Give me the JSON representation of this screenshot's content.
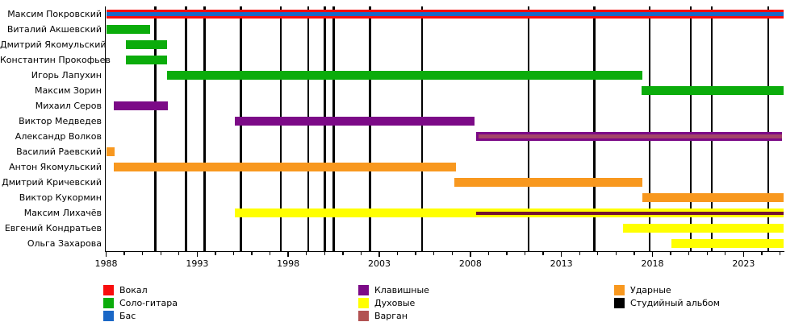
{
  "chart_data": {
    "type": "timeline",
    "title": "",
    "x_axis": {
      "min": 1988,
      "max": 2025.4,
      "major_ticks": [
        1988,
        1993,
        1998,
        2003,
        2008,
        2013,
        2018,
        2023
      ],
      "minor_tick_step": 1,
      "minor_tick_end": 2025
    },
    "album_marker_label": "Студийный альбом",
    "album_years": [
      1990.7,
      1992.4,
      1993.4,
      1995.4,
      1997.6,
      1999.1,
      2000.0,
      2000.5,
      2002.5,
      2005.35,
      2011.2,
      2014.8,
      2017.85,
      2020.1,
      2021.25,
      2024.35
    ],
    "members": [
      {
        "name": "Максим Покровский",
        "bars": [
          {
            "role": "Вокал",
            "color": "#f80d0d",
            "start": 1988,
            "end": 2025.2
          }
        ],
        "stripes": [
          {
            "role": "Бас",
            "color": "#1a67c6",
            "start": 1988,
            "end": 2025.2,
            "h": 5
          }
        ]
      },
      {
        "name": "Виталий Акшевский",
        "bars": [
          {
            "role": "Соло-гитара",
            "color": "#0bac0b",
            "start": 1988,
            "end": 1990.4
          }
        ],
        "stripes": []
      },
      {
        "name": "Дмитрий Якомульский",
        "bars": [
          {
            "role": "Соло-гитара",
            "color": "#0bac0b",
            "start": 1989.1,
            "end": 1991.35
          }
        ],
        "stripes": []
      },
      {
        "name": "Константин Прокофьев",
        "bars": [
          {
            "role": "Соло-гитара",
            "color": "#0bac0b",
            "start": 1989.1,
            "end": 1991.35
          }
        ],
        "stripes": []
      },
      {
        "name": "Игорь Лапухин",
        "bars": [
          {
            "role": "Соло-гитара",
            "color": "#0bac0b",
            "start": 1991.35,
            "end": 2017.45
          }
        ],
        "stripes": []
      },
      {
        "name": "Максим Зорин",
        "bars": [
          {
            "role": "Соло-гитара",
            "color": "#0bac0b",
            "start": 2017.4,
            "end": 2025.2
          }
        ],
        "stripes": []
      },
      {
        "name": "Михаил Серов",
        "bars": [
          {
            "role": "Клавишные",
            "color": "#7c0a87",
            "start": 1988.4,
            "end": 1991.4
          }
        ],
        "stripes": []
      },
      {
        "name": "Виктор Медведев",
        "bars": [
          {
            "role": "Клавишные",
            "color": "#7c0a87",
            "start": 1995.05,
            "end": 2008.25
          }
        ],
        "stripes": []
      },
      {
        "name": "Александр Волков",
        "bars": [
          {
            "role": "Клавишные",
            "color": "#7c0a87",
            "start": 2008.3,
            "end": 2025.1
          }
        ],
        "stripes": [
          {
            "role": "Варган",
            "color": "#a34468",
            "start": 2008.45,
            "end": 2025.1,
            "h": 5
          }
        ]
      },
      {
        "name": "Василий Раевский",
        "bars": [
          {
            "role": "Ударные",
            "color": "#f8981f",
            "start": 1988,
            "end": 1988.45
          }
        ],
        "stripes": []
      },
      {
        "name": "Антон Якомульский",
        "bars": [
          {
            "role": "Ударные",
            "color": "#f8981f",
            "start": 1988.4,
            "end": 2007.2
          }
        ],
        "stripes": []
      },
      {
        "name": "Дмитрий Кричевский",
        "bars": [
          {
            "role": "Ударные",
            "color": "#f8981f",
            "start": 2007.1,
            "end": 2017.45
          }
        ],
        "stripes": []
      },
      {
        "name": "Виктор Кукормин",
        "bars": [
          {
            "role": "Ударные",
            "color": "#f8981f",
            "start": 2017.45,
            "end": 2025.2
          }
        ],
        "stripes": []
      },
      {
        "name": "Максим Лихачёв",
        "bars": [
          {
            "role": "Духовые",
            "color": "#ffff00",
            "start": 1995.05,
            "end": 2025.2
          }
        ],
        "stripes": [
          {
            "role": "Варган",
            "color": "#73132f",
            "start": 2008.3,
            "end": 2025.2,
            "h": 4
          }
        ]
      },
      {
        "name": "Евгений Кондратьев",
        "bars": [
          {
            "role": "Духовые",
            "color": "#ffff00",
            "start": 2016.4,
            "end": 2025.2
          }
        ],
        "stripes": []
      },
      {
        "name": "Ольга Захарова",
        "bars": [
          {
            "role": "Духовые",
            "color": "#ffff00",
            "start": 2019.05,
            "end": 2025.2
          }
        ],
        "stripes": []
      }
    ]
  },
  "legend": {
    "columns": [
      [
        {
          "label": "Вокал",
          "color": "#f80d0d"
        },
        {
          "label": "Соло-гитара",
          "color": "#0bac0b"
        },
        {
          "label": "Бас",
          "color": "#1a67c6"
        }
      ],
      [
        {
          "label": "Клавишные",
          "color": "#7c0a87"
        },
        {
          "label": "Духовые",
          "color": "#ffff00"
        },
        {
          "label": "Варган",
          "color": "#b25252"
        }
      ],
      [
        {
          "label": "Ударные",
          "color": "#f8981f"
        },
        {
          "label": "Студийный альбом",
          "color": "#000000"
        }
      ]
    ]
  }
}
